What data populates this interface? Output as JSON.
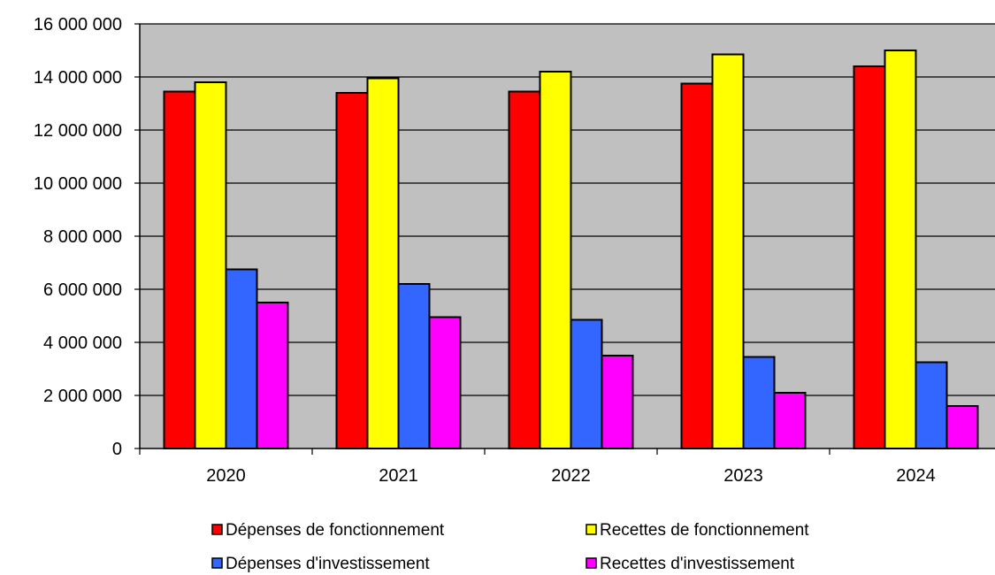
{
  "chart_data": {
    "type": "bar",
    "categories": [
      "2020",
      "2021",
      "2022",
      "2023",
      "2024"
    ],
    "series": [
      {
        "name": "Dépenses de fonctionnement",
        "color": "#ff0000",
        "values": [
          13450000,
          13400000,
          13450000,
          13750000,
          14400000
        ]
      },
      {
        "name": "Recettes de fonctionnement",
        "color": "#ffff00",
        "values": [
          13800000,
          13950000,
          14200000,
          14850000,
          15000000
        ]
      },
      {
        "name": "Dépenses d'investissement",
        "color": "#3366ff",
        "values": [
          6750000,
          6200000,
          4850000,
          3450000,
          3250000
        ]
      },
      {
        "name": "Recettes d'investissement",
        "color": "#ff00ff",
        "values": [
          5500000,
          4950000,
          3500000,
          2100000,
          1600000
        ]
      }
    ],
    "y_ticks": [
      {
        "value": 0,
        "label": "0"
      },
      {
        "value": 2000000,
        "label": "2 000 000"
      },
      {
        "value": 4000000,
        "label": "4 000 000"
      },
      {
        "value": 6000000,
        "label": "6 000 000"
      },
      {
        "value": 8000000,
        "label": "8 000 000"
      },
      {
        "value": 10000000,
        "label": "10 000 000"
      },
      {
        "value": 12000000,
        "label": "12 000 000"
      },
      {
        "value": 14000000,
        "label": "14 000 000"
      },
      {
        "value": 16000000,
        "label": "16 000 000"
      }
    ],
    "ylim": [
      0,
      16000000
    ],
    "grid": true,
    "plot_background": "#c0c0c0",
    "legend_position": "bottom",
    "title": "",
    "xlabel": "",
    "ylabel": ""
  }
}
